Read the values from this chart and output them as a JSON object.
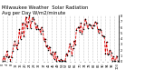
{
  "title": "Milwaukee Weather  Solar Radiation",
  "subtitle": "Avg per Day W/m2/minute",
  "background_color": "#ffffff",
  "line_color": "#dd0000",
  "line_style": "--",
  "line_width": 0.6,
  "marker": "o",
  "marker_size": 0.8,
  "marker_color": "#000000",
  "grid_color": "#999999",
  "grid_style": ":",
  "grid_linewidth": 0.4,
  "n_points": 104,
  "base_values": [
    2.0,
    2.1,
    2.5,
    2.8,
    3.5,
    4.2,
    4.8,
    5.5,
    6.0,
    6.5,
    6.8,
    7.0,
    7.2,
    7.2,
    7.0,
    6.8,
    6.5,
    6.3,
    5.8,
    5.0,
    4.2,
    3.5,
    2.8,
    2.2,
    1.8,
    1.7,
    2.0,
    2.1,
    2.5,
    2.8,
    3.5,
    4.2,
    4.8,
    5.5,
    6.0,
    6.5,
    6.8,
    7.0,
    7.2,
    7.2,
    7.0,
    6.8,
    6.5,
    6.3,
    5.8,
    5.0,
    4.2,
    3.5,
    2.8,
    2.2,
    1.8,
    1.7
  ],
  "noise_scale": 1.5,
  "ylim": [
    0,
    8
  ],
  "ytick_values": [
    8,
    7,
    6,
    5,
    4,
    3,
    2,
    1,
    0
  ],
  "n_xticks": 26,
  "title_fontsize": 3.8,
  "tick_fontsize": 2.5
}
